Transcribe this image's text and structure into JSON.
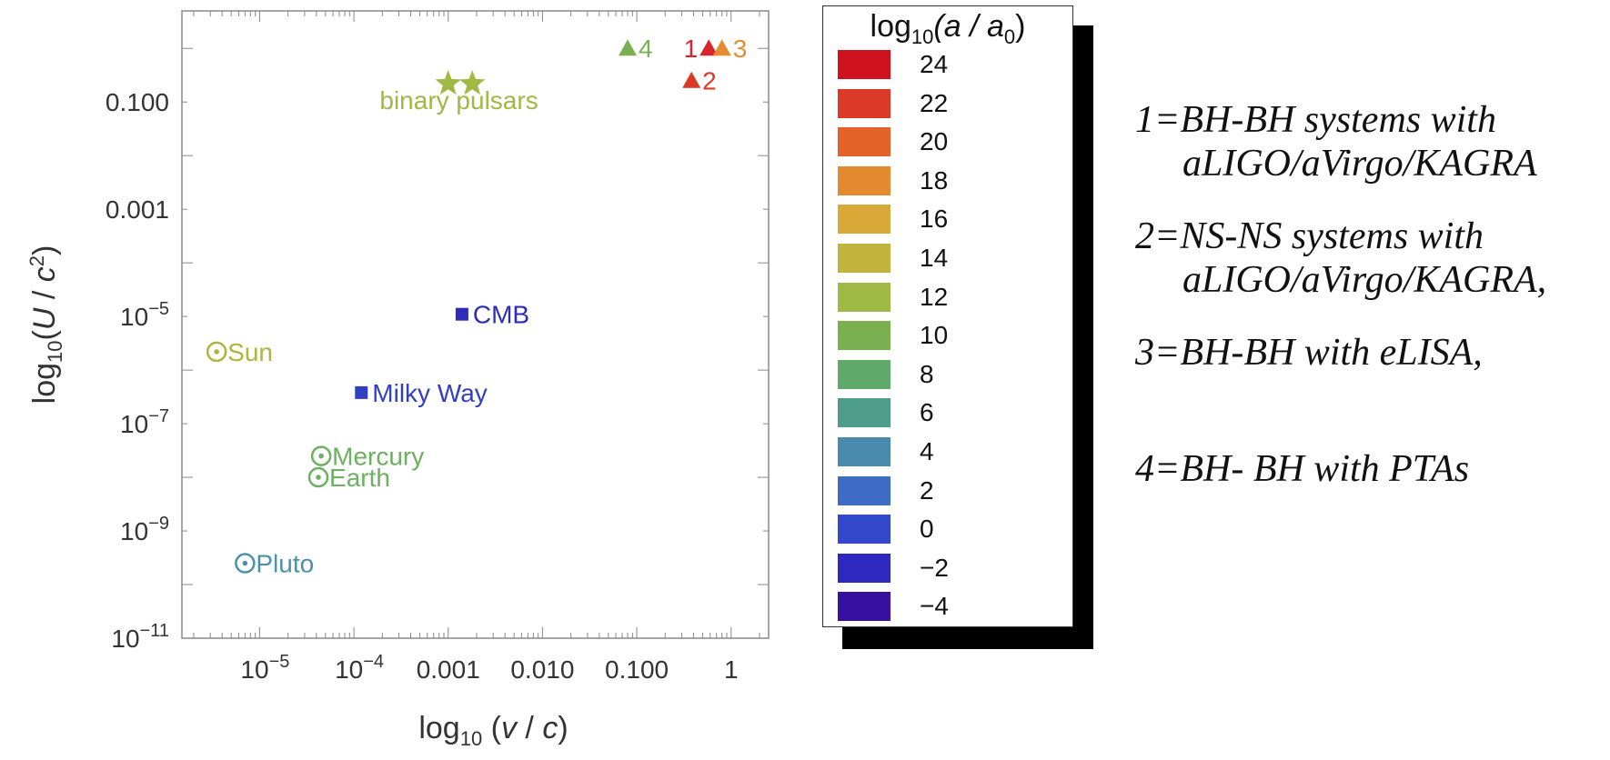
{
  "chart_data": {
    "type": "scatter",
    "title": "",
    "xlabel": "log10 (v / c)",
    "ylabel": "log10(U / c²)",
    "x_scale": "log",
    "y_scale": "log",
    "xlim": [
      1.5e-06,
      2.5
    ],
    "ylim": [
      1e-11,
      5
    ],
    "x_ticks": [
      {
        "value": 1e-05,
        "base": "10",
        "exp": "−5",
        "text": ""
      },
      {
        "value": 0.0001,
        "base": "10",
        "exp": "−4",
        "text": ""
      },
      {
        "value": 0.001,
        "base": "",
        "exp": "",
        "text": "0.001"
      },
      {
        "value": 0.01,
        "base": "",
        "exp": "",
        "text": "0.010"
      },
      {
        "value": 0.1,
        "base": "",
        "exp": "",
        "text": "0.100"
      },
      {
        "value": 1,
        "base": "",
        "exp": "",
        "text": "1"
      }
    ],
    "y_ticks": [
      {
        "value": 0.1,
        "base": "",
        "exp": "",
        "text": "0.100"
      },
      {
        "value": 0.001,
        "base": "",
        "exp": "",
        "text": "0.001"
      },
      {
        "value": 1e-05,
        "base": "10",
        "exp": "−5",
        "text": ""
      },
      {
        "value": 1e-07,
        "base": "10",
        "exp": "−7",
        "text": ""
      },
      {
        "value": 1e-09,
        "base": "10",
        "exp": "−9",
        "text": ""
      },
      {
        "value": 1e-11,
        "base": "10",
        "exp": "−11",
        "text": ""
      }
    ],
    "points": [
      {
        "label": "Sun",
        "marker": "circle-dot",
        "x": 3.5e-06,
        "y": 2.2e-06,
        "color": "#a8b83c",
        "label_pos": "right"
      },
      {
        "label": "CMB",
        "marker": "square",
        "x": 0.0014,
        "y": 1.1e-05,
        "color": "#2e2cb8",
        "label_pos": "right"
      },
      {
        "label": "Milky Way",
        "marker": "square",
        "x": 0.00012,
        "y": 3.8e-07,
        "color": "#3040c0",
        "label_pos": "right"
      },
      {
        "label": "Mercury",
        "marker": "circle-dot",
        "x": 4.5e-05,
        "y": 2.5e-08,
        "color": "#6cb060",
        "label_pos": "right"
      },
      {
        "label": "Earth",
        "marker": "circle-dot",
        "x": 4.2e-05,
        "y": 1e-08,
        "color": "#6cb060",
        "label_pos": "right"
      },
      {
        "label": "Pluto",
        "marker": "circle-dot",
        "x": 7e-06,
        "y": 2.5e-10,
        "color": "#4a92aa",
        "label_pos": "right"
      },
      {
        "label": "",
        "marker": "star",
        "x": 0.001,
        "y": 0.22,
        "color": "#a0b844",
        "label_pos": "none"
      },
      {
        "label": "",
        "marker": "star",
        "x": 0.0018,
        "y": 0.22,
        "color": "#a0b844",
        "label_pos": "none"
      },
      {
        "label": "4",
        "marker": "triangle",
        "x": 0.08,
        "y": 1.0,
        "color": "#7ab050",
        "label_pos": "right"
      },
      {
        "label": "1",
        "marker": "triangle",
        "x": 0.58,
        "y": 1.0,
        "color": "#d8242a",
        "label_pos": "left"
      },
      {
        "label": "3",
        "marker": "triangle",
        "x": 0.8,
        "y": 1.0,
        "color": "#e48e30",
        "label_pos": "right"
      },
      {
        "label": "2",
        "marker": "triangle",
        "x": 0.38,
        "y": 0.25,
        "color": "#dc3a28",
        "label_pos": "right"
      }
    ],
    "annotations": [
      {
        "text": "binary pulsars",
        "x": 0.0013,
        "y": 0.11,
        "color": "#a0b844"
      }
    ],
    "legend": {
      "title_prefix": "log",
      "title_sub": "10",
      "title_rest": "(a / a",
      "title_sub2": "0",
      "title_close": ")",
      "placement": "right",
      "entries": [
        {
          "label": "24",
          "color": "#d0121e"
        },
        {
          "label": "22",
          "color": "#dc3a28"
        },
        {
          "label": "20",
          "color": "#e4622a"
        },
        {
          "label": "18",
          "color": "#e48a30"
        },
        {
          "label": "16",
          "color": "#d8a838"
        },
        {
          "label": "14",
          "color": "#c0b43c"
        },
        {
          "label": "12",
          "color": "#a0b844"
        },
        {
          "label": "10",
          "color": "#7ab050"
        },
        {
          "label": "8",
          "color": "#60aa6c"
        },
        {
          "label": "6",
          "color": "#4e9c8a"
        },
        {
          "label": "4",
          "color": "#4a8aac"
        },
        {
          "label": "2",
          "color": "#3e6cc4"
        },
        {
          "label": "0",
          "color": "#3448cc"
        },
        {
          "label": "−2",
          "color": "#2e28c0"
        },
        {
          "label": "−4",
          "color": "#3810a0"
        }
      ]
    },
    "colors": {
      "axis": "#888888",
      "text": "#333333"
    }
  },
  "notes": [
    {
      "line1": "1=BH-BH systems with",
      "line2": "aLIGO/aVirgo/KAGRA"
    },
    {
      "line1": "2=NS-NS systems with",
      "line2": "aLIGO/aVirgo/KAGRA,"
    },
    {
      "line1": "3=BH-BH with eLISA,",
      "line2": ""
    },
    {
      "line1": "4=BH- BH with PTAs",
      "line2": ""
    }
  ]
}
